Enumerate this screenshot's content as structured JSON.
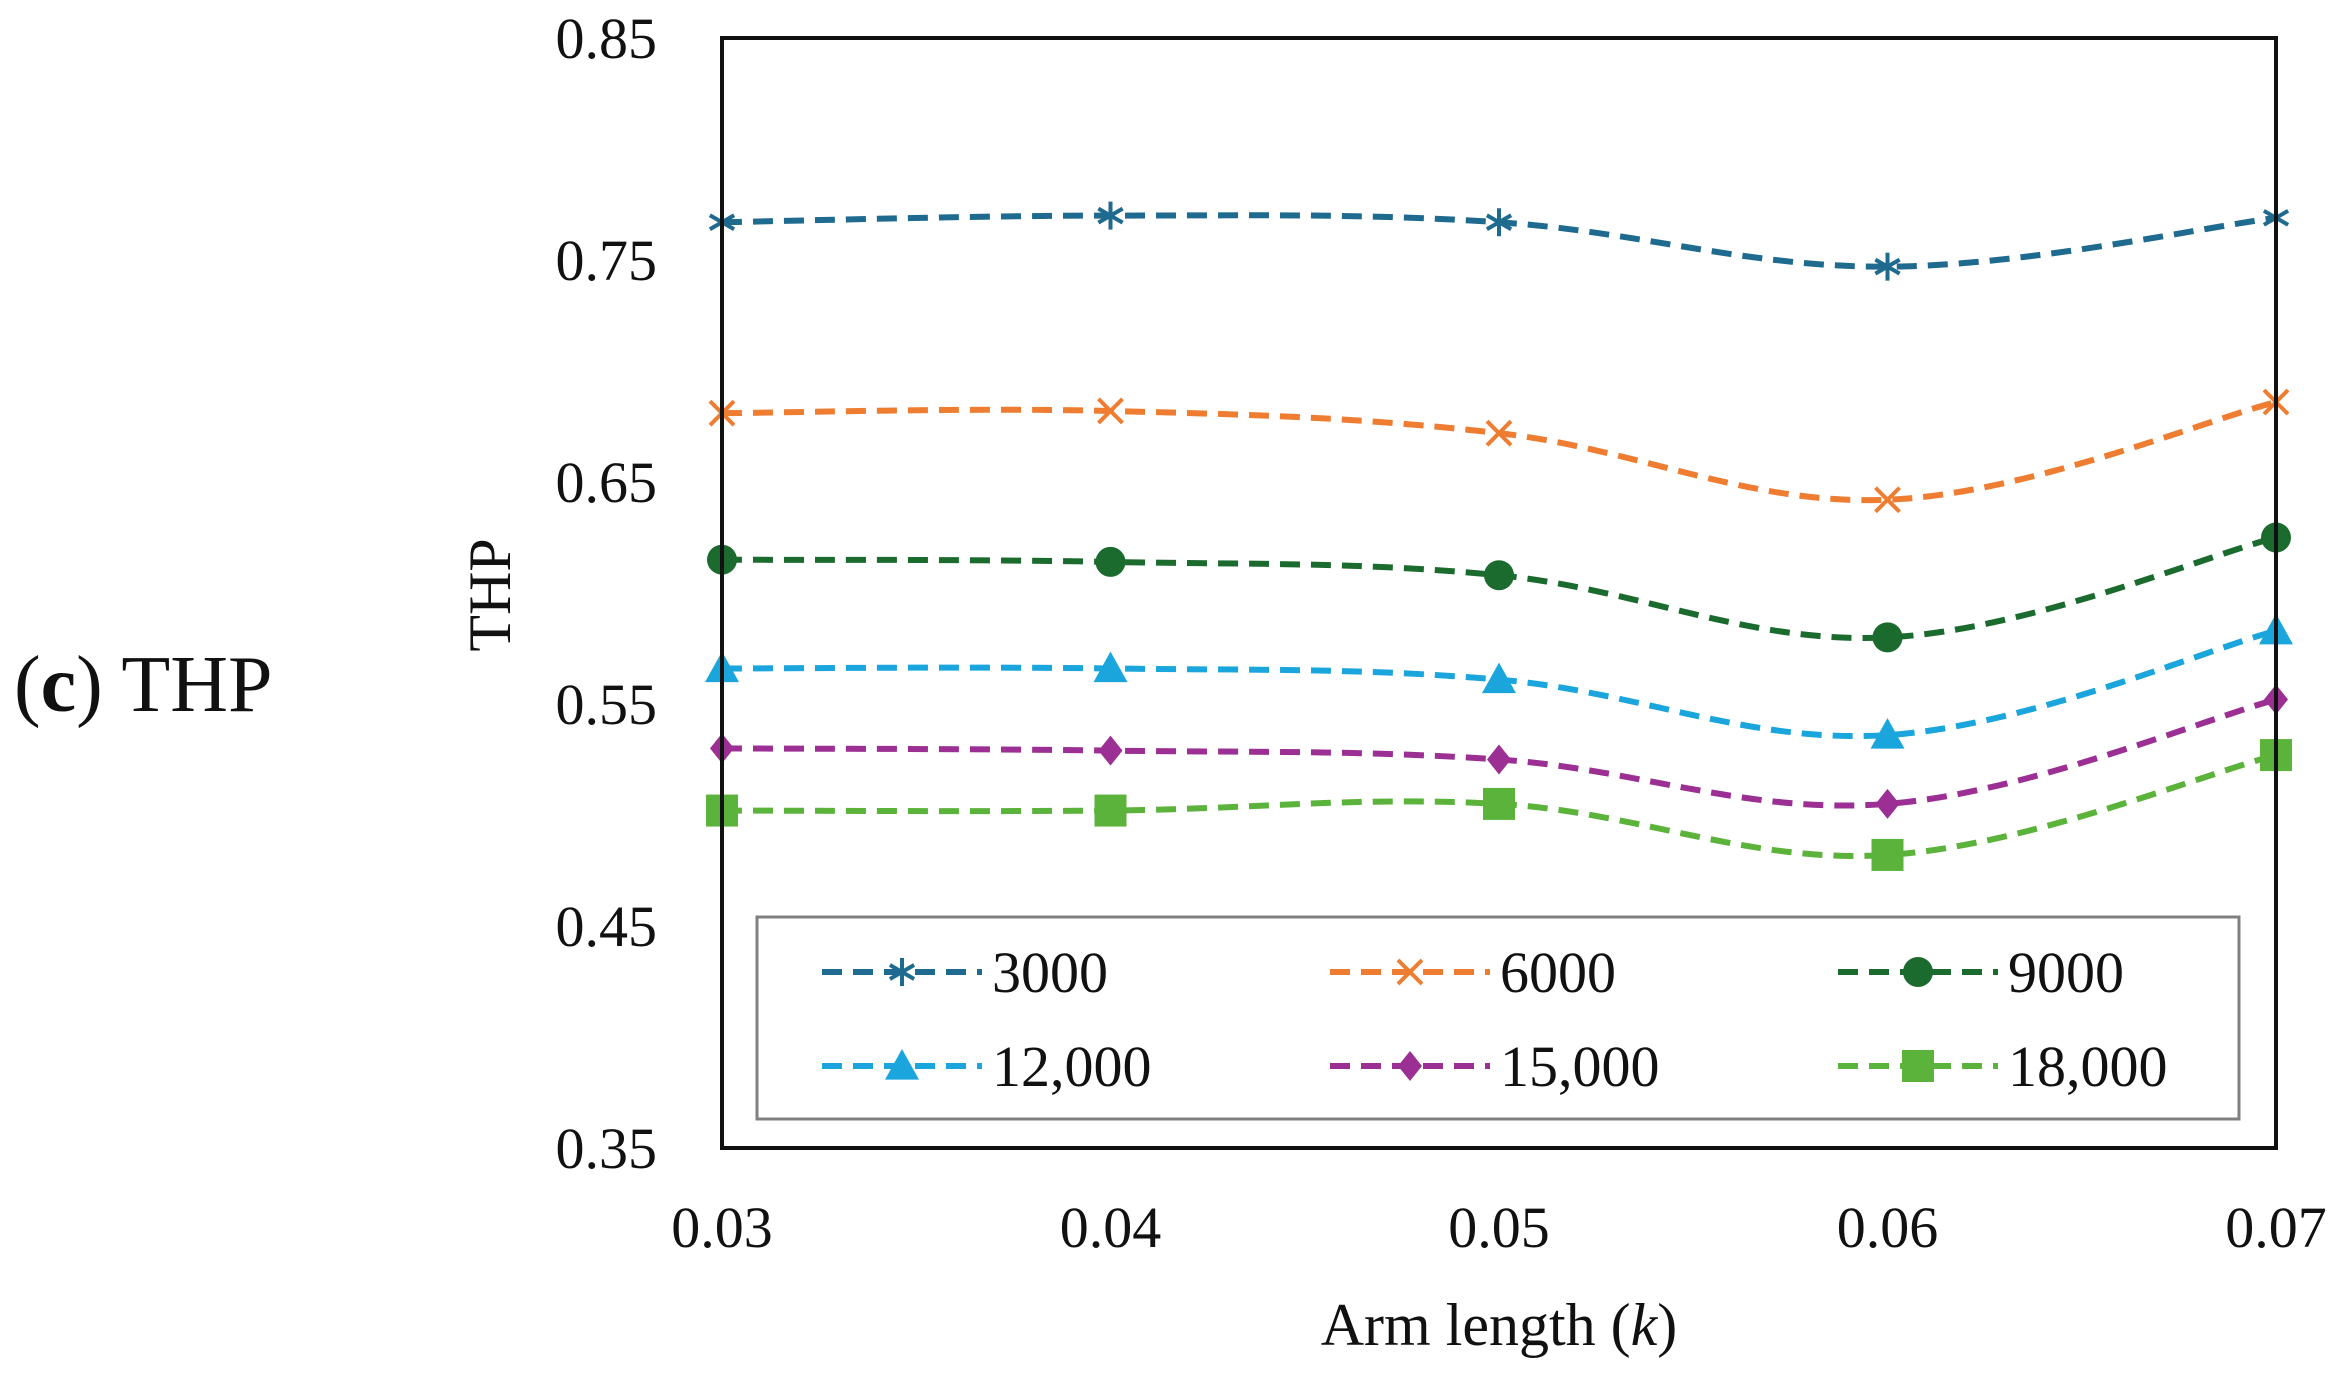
{
  "panel": {
    "letter": "c",
    "paren_open": "(",
    "paren_close": ")",
    "title": "THP"
  },
  "chart_data": {
    "type": "line",
    "title": "",
    "xlabel_text": "Arm length (",
    "xlabel_var": "k",
    "xlabel_close": ")",
    "ylabel": "THP",
    "x": [
      0.03,
      0.04,
      0.05,
      0.06,
      0.07
    ],
    "x_tick_labels": [
      "0.03",
      "0.04",
      "0.05",
      "0.06",
      "0.07"
    ],
    "y_ticks": [
      0.35,
      0.45,
      0.55,
      0.65,
      0.75,
      0.85
    ],
    "y_tick_labels": [
      "0.35",
      "0.45",
      "0.55",
      "0.65",
      "0.75",
      "0.85"
    ],
    "ylim": [
      0.35,
      0.85
    ],
    "xlim": [
      0.03,
      0.07
    ],
    "grid": false,
    "legend_position": "bottom-inside",
    "series": [
      {
        "name": "3000",
        "values": [
          0.767,
          0.77,
          0.767,
          0.747,
          0.769
        ],
        "color": "#1f6a8f",
        "marker": "asterisk"
      },
      {
        "name": "6000",
        "values": [
          0.681,
          0.682,
          0.672,
          0.642,
          0.686
        ],
        "color": "#ee7d31",
        "marker": "x"
      },
      {
        "name": "9000",
        "values": [
          0.615,
          0.614,
          0.608,
          0.58,
          0.625
        ],
        "color": "#1c6b2e",
        "marker": "circle"
      },
      {
        "name": "12,000",
        "values": [
          0.566,
          0.566,
          0.561,
          0.536,
          0.583
        ],
        "color": "#1aa6dc",
        "marker": "triangle"
      },
      {
        "name": "15,000",
        "values": [
          0.53,
          0.529,
          0.525,
          0.505,
          0.552
        ],
        "color": "#9b2f93",
        "marker": "diamond"
      },
      {
        "name": "18,000",
        "values": [
          0.502,
          0.502,
          0.505,
          0.482,
          0.527
        ],
        "color": "#5cb33c",
        "marker": "square"
      }
    ]
  }
}
